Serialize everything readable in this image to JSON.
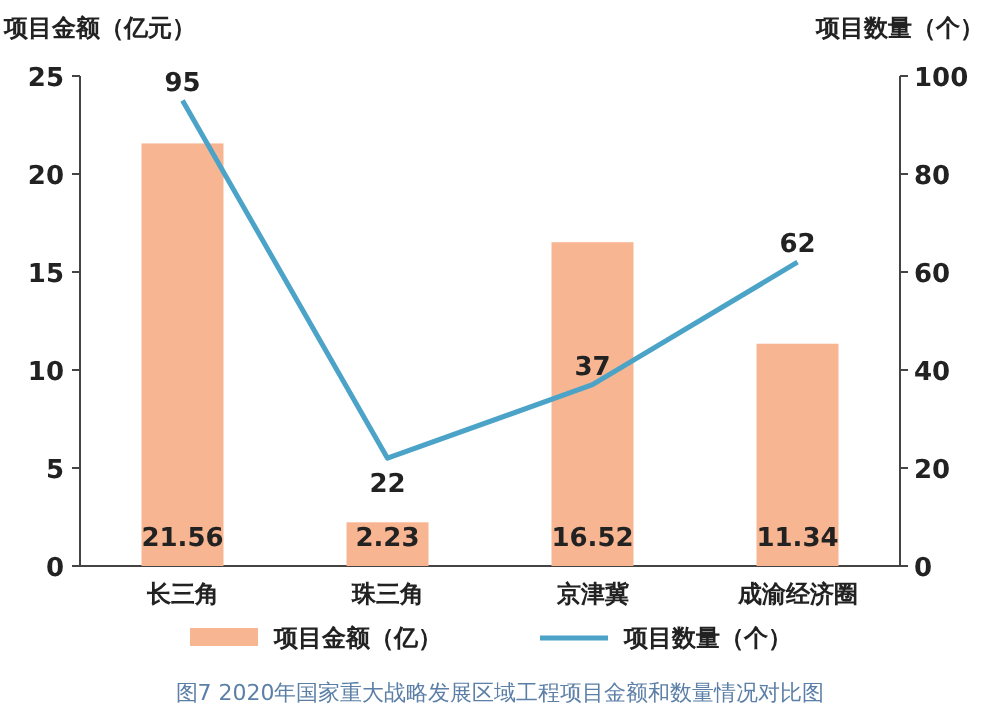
{
  "chart_data": {
    "type": "bar",
    "categories": [
      "长三角",
      "珠三角",
      "京津冀",
      "成渝经济圈"
    ],
    "series": [
      {
        "name": "项目金额（亿）",
        "color": "#f8b591",
        "values": [
          21.56,
          2.23,
          16.52,
          11.34
        ]
      },
      {
        "name": "项目数量（个）",
        "type": "line",
        "axis": "y2",
        "color": "#4ba3c7",
        "values": [
          95,
          22,
          37,
          62
        ]
      }
    ],
    "ylabel": "项目金额（亿元）",
    "y2label": "项目数量（个）",
    "ylim": [
      0,
      25
    ],
    "yticks": [
      0,
      5,
      10,
      15,
      20,
      25
    ],
    "y2lim": [
      0,
      100
    ],
    "y2ticks": [
      0,
      20,
      40,
      60,
      80,
      100
    ],
    "data_labels": true,
    "legend": "bottom",
    "annotations": [
      "图7  2020年国家重大战略发展区域工程项目金额和数量情况对比图"
    ]
  }
}
